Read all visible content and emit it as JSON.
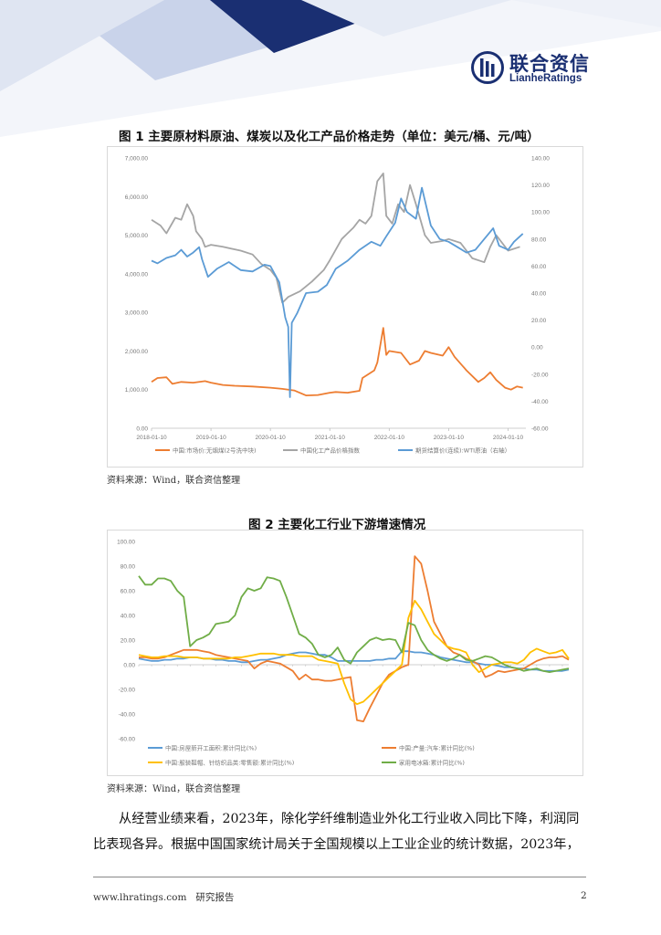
{
  "header": {
    "logo_cn": "联合资信",
    "logo_en": "LianheRatings",
    "colors": {
      "navy": "#1a2f72",
      "blue_light": "#c9d3ea"
    }
  },
  "figure1": {
    "title": "图 1  主要原材料原油、煤炭以及化工产品价格走势（单位：美元/桶、元/吨）",
    "source": "资料来源：Wind，联合资信整理"
  },
  "figure2": {
    "title": "图 2  主要化工行业下游增速情况",
    "source": "资料来源：Wind，联合资信整理"
  },
  "body": {
    "paragraph": "从经营业绩来看，2023年，除化学纤维制造业外化工行业收入同比下降，利润同比表现各异。根据中国国家统计局关于全国规模以上工业企业的统计数据，2023年，"
  },
  "footer": {
    "site": "www.lhratings.com",
    "label": "研究报告",
    "page": "2"
  },
  "chart_data": [
    {
      "type": "line",
      "x_ticks": [
        "2018-01-10",
        "2019-01-10",
        "2020-01-10",
        "2021-01-10",
        "2022-01-10",
        "2023-01-10",
        "2024-01-10"
      ],
      "ylim_left": [
        0,
        7000
      ],
      "y_ticks_left": [
        "0.00",
        "1,000.00",
        "2,000.00",
        "3,000.00",
        "4,000.00",
        "5,000.00",
        "6,000.00",
        "7,000.00"
      ],
      "ylim_right": [
        -60,
        140
      ],
      "y_ticks_right": [
        "-60.00",
        "-40.00",
        "-20.00",
        "0.00",
        "20.00",
        "40.00",
        "60.00",
        "80.00",
        "100.00",
        "120.00",
        "140.00"
      ],
      "legend_position": "bottom",
      "series": [
        {
          "name": "中国:市场价:无烟煤(2号洗中块)",
          "axis": "left",
          "color": "#ed7d31",
          "x": [
            2018.0,
            2018.1,
            2018.25,
            2018.35,
            2018.5,
            2018.7,
            2018.9,
            2019.0,
            2019.2,
            2019.4,
            2019.7,
            2020.0,
            2020.2,
            2020.4,
            2020.6,
            2020.8,
            2021.0,
            2021.1,
            2021.3,
            2021.5,
            2021.55,
            2021.6,
            2021.75,
            2021.8,
            2021.9,
            2021.95,
            2022.0,
            2022.2,
            2022.35,
            2022.5,
            2022.6,
            2022.7,
            2022.9,
            2023.0,
            2023.1,
            2023.3,
            2023.5,
            2023.6,
            2023.7,
            2023.8,
            2023.95,
            2024.05,
            2024.15,
            2024.25
          ],
          "values": [
            1200,
            1300,
            1320,
            1150,
            1200,
            1180,
            1220,
            1180,
            1120,
            1100,
            1080,
            1050,
            1020,
            980,
            850,
            860,
            920,
            940,
            920,
            970,
            1300,
            1350,
            1500,
            1700,
            2600,
            1900,
            2000,
            1950,
            1650,
            1750,
            2000,
            1950,
            1880,
            2100,
            1850,
            1500,
            1200,
            1300,
            1450,
            1250,
            1050,
            1000,
            1080,
            1050
          ]
        },
        {
          "name": "中国化工产品价格指数",
          "axis": "left",
          "color": "#a5a5a5",
          "x": [
            2018.0,
            2018.15,
            2018.25,
            2018.4,
            2018.5,
            2018.6,
            2018.7,
            2018.75,
            2018.85,
            2018.9,
            2019.0,
            2019.2,
            2019.5,
            2019.7,
            2019.85,
            2020.0,
            2020.1,
            2020.2,
            2020.3,
            2020.5,
            2020.7,
            2020.9,
            2021.0,
            2021.2,
            2021.4,
            2021.5,
            2021.6,
            2021.7,
            2021.8,
            2021.9,
            2021.95,
            2022.05,
            2022.15,
            2022.25,
            2022.35,
            2022.45,
            2022.6,
            2022.7,
            2022.9,
            2023.0,
            2023.2,
            2023.4,
            2023.6,
            2023.7,
            2023.8,
            2024.0,
            2024.2
          ],
          "values": [
            5400,
            5250,
            5050,
            5450,
            5400,
            5800,
            5500,
            5100,
            4900,
            4700,
            4750,
            4700,
            4600,
            4500,
            4250,
            4100,
            3900,
            3250,
            3400,
            3550,
            3800,
            4100,
            4350,
            4900,
            5200,
            5400,
            5300,
            5500,
            6400,
            6600,
            5500,
            5300,
            5800,
            5600,
            6300,
            5800,
            5000,
            4800,
            4850,
            4900,
            4800,
            4400,
            4300,
            4700,
            5000,
            4600,
            4700
          ]
        },
        {
          "name": "期货结算价(连续):WTI原油（右轴）",
          "axis": "right",
          "color": "#5b9bd5",
          "x": [
            2018.0,
            2018.1,
            2018.25,
            2018.4,
            2018.5,
            2018.6,
            2018.7,
            2018.8,
            2018.85,
            2018.95,
            2019.1,
            2019.3,
            2019.5,
            2019.7,
            2019.9,
            2020.0,
            2020.15,
            2020.25,
            2020.3,
            2020.33,
            2020.36,
            2020.45,
            2020.6,
            2020.8,
            2020.95,
            2021.1,
            2021.3,
            2021.5,
            2021.7,
            2021.85,
            2021.95,
            2022.1,
            2022.2,
            2022.3,
            2022.45,
            2022.55,
            2022.7,
            2022.85,
            2023.0,
            2023.15,
            2023.3,
            2023.45,
            2023.6,
            2023.75,
            2023.85,
            2024.0,
            2024.1,
            2024.25
          ],
          "values": [
            64,
            62,
            66,
            68,
            72,
            67,
            70,
            74,
            65,
            52,
            58,
            63,
            57,
            56,
            61,
            60,
            48,
            22,
            15,
            -37,
            18,
            25,
            40,
            41,
            46,
            58,
            64,
            72,
            78,
            75,
            82,
            92,
            110,
            100,
            95,
            118,
            90,
            80,
            78,
            74,
            70,
            72,
            80,
            88,
            75,
            72,
            78,
            84
          ]
        }
      ]
    },
    {
      "type": "line",
      "ylim": [
        -60,
        100
      ],
      "y_ticks": [
        "-60.00",
        "-40.00",
        "-20.00",
        "0.00",
        "20.00",
        "40.00",
        "60.00",
        "80.00",
        "100.00"
      ],
      "legend_position": "bottom",
      "series": [
        {
          "name": "中国:房屋新开工面积:累计同比(%)",
          "color": "#5b9bd5",
          "values": [
            5,
            4,
            3,
            3,
            4,
            4,
            5,
            5,
            6,
            6,
            5,
            5,
            4,
            4,
            3,
            3,
            2,
            2,
            3,
            4,
            4,
            5,
            6,
            8,
            9,
            10,
            10,
            9,
            8,
            8,
            6,
            3,
            3,
            3,
            3,
            3,
            3,
            4,
            4,
            5,
            5,
            11,
            11,
            10,
            10,
            9,
            8,
            6,
            5,
            4,
            3,
            2,
            2,
            1,
            0,
            0,
            -1,
            -2,
            -2,
            -3,
            -3,
            -4,
            -4,
            -5,
            -5,
            -5,
            -5,
            -4
          ]
        },
        {
          "name": "中国:产量:汽车:累计同比(%)",
          "color": "#ed7d31",
          "values": [
            6,
            6,
            5,
            5,
            6,
            8,
            10,
            12,
            12,
            12,
            11,
            10,
            8,
            7,
            6,
            5,
            4,
            3,
            -3,
            1,
            3,
            2,
            1,
            -2,
            -5,
            -12,
            -8,
            -12,
            -12,
            -13,
            -13,
            -12,
            -11,
            -10,
            -45,
            -46,
            -35,
            -25,
            -15,
            -8,
            -5,
            -2,
            0,
            88,
            82,
            60,
            35,
            25,
            15,
            10,
            8,
            5,
            3,
            0,
            -10,
            -8,
            -5,
            -6,
            -5,
            -4,
            -3,
            0,
            3,
            5,
            6,
            6,
            7,
            4
          ]
        },
        {
          "name": "中国:服装鞋帽、针纺织品类:零售额:累计同比(%)",
          "color": "#ffc000",
          "values": [
            8,
            7,
            6,
            6,
            7,
            7,
            7,
            6,
            6,
            6,
            5,
            5,
            5,
            5,
            5,
            6,
            6,
            7,
            8,
            9,
            9,
            9,
            8,
            8,
            8,
            7,
            7,
            7,
            4,
            3,
            2,
            1,
            -15,
            -28,
            -32,
            -30,
            -25,
            -20,
            -15,
            -10,
            -5,
            0,
            38,
            52,
            45,
            35,
            25,
            20,
            15,
            13,
            12,
            10,
            0,
            -6,
            -3,
            0,
            1,
            2,
            2,
            1,
            4,
            10,
            13,
            11,
            9,
            10,
            12,
            5
          ]
        },
        {
          "name": "家用电冰箱:累计同比(%)",
          "color": "#70ad47",
          "values": [
            72,
            65,
            65,
            70,
            70,
            68,
            60,
            55,
            15,
            20,
            22,
            25,
            33,
            34,
            35,
            40,
            55,
            62,
            60,
            62,
            71,
            70,
            68,
            55,
            40,
            25,
            22,
            17,
            8,
            6,
            8,
            14,
            4,
            1,
            10,
            15,
            20,
            22,
            20,
            21,
            20,
            10,
            34,
            32,
            20,
            12,
            8,
            5,
            3,
            5,
            8,
            4,
            3,
            5,
            7,
            6,
            3,
            0,
            -2,
            -3,
            -5,
            -4,
            -3,
            -5,
            -6,
            -5,
            -4,
            -3
          ]
        }
      ]
    }
  ]
}
